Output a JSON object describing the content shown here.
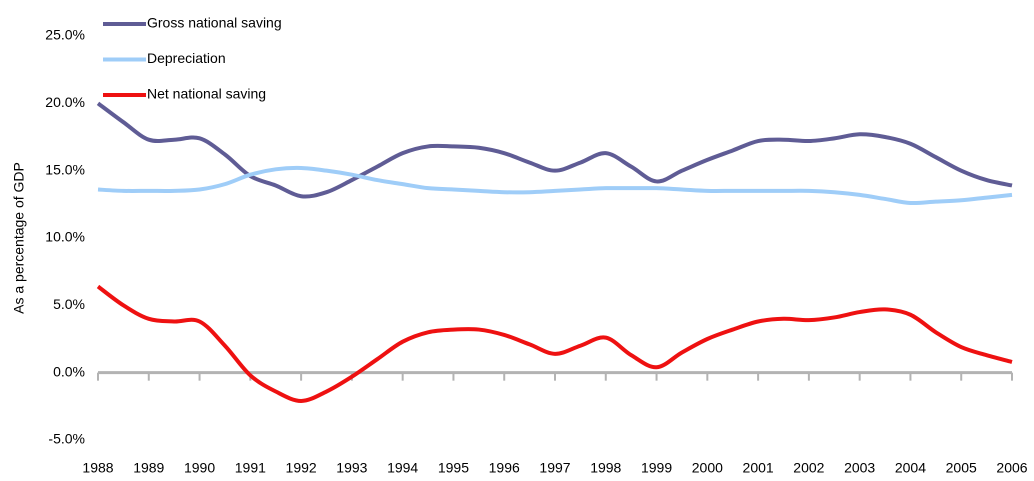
{
  "chart_data": {
    "type": "line",
    "y_label": "As a percentage of GDP",
    "x": [
      1988,
      1988.5,
      1989,
      1989.5,
      1990,
      1990.5,
      1991,
      1991.5,
      1992,
      1992.5,
      1993,
      1993.5,
      1994,
      1994.5,
      1995,
      1995.5,
      1996,
      1996.5,
      1997,
      1997.5,
      1998,
      1998.5,
      1999,
      1999.5,
      2000,
      2000.5,
      2001,
      2001.5,
      2002,
      2002.5,
      2003,
      2003.5,
      2004,
      2004.5,
      2005,
      2005.5,
      2006
    ],
    "series": [
      {
        "name": "Gross national saving",
        "color": "#5f5c95",
        "values": [
          20.0,
          18.6,
          17.3,
          17.3,
          17.4,
          16.2,
          14.6,
          13.9,
          13.1,
          13.4,
          14.3,
          15.3,
          16.3,
          16.8,
          16.8,
          16.7,
          16.3,
          15.6,
          15.0,
          15.6,
          16.3,
          15.3,
          14.2,
          15.0,
          15.8,
          16.5,
          17.2,
          17.3,
          17.2,
          17.4,
          17.7,
          17.5,
          17.0,
          16.0,
          15.0,
          14.3,
          13.9
        ]
      },
      {
        "name": "Depreciation",
        "color": "#9fcdf8",
        "values": [
          13.6,
          13.5,
          13.5,
          13.5,
          13.6,
          14.0,
          14.7,
          15.1,
          15.2,
          15.0,
          14.7,
          14.3,
          14.0,
          13.7,
          13.6,
          13.5,
          13.4,
          13.4,
          13.5,
          13.6,
          13.7,
          13.7,
          13.7,
          13.6,
          13.5,
          13.5,
          13.5,
          13.5,
          13.5,
          13.4,
          13.2,
          12.9,
          12.6,
          12.7,
          12.8,
          13.0,
          13.2
        ]
      },
      {
        "name": "Net national saving",
        "color": "#ee1111",
        "values": [
          6.4,
          5.0,
          4.0,
          3.8,
          3.8,
          2.0,
          -0.2,
          -1.4,
          -2.1,
          -1.4,
          -0.3,
          1.0,
          2.3,
          3.0,
          3.2,
          3.2,
          2.8,
          2.1,
          1.4,
          2.0,
          2.6,
          1.3,
          0.4,
          1.5,
          2.5,
          3.2,
          3.8,
          4.0,
          3.9,
          4.1,
          4.5,
          4.7,
          4.3,
          3.0,
          1.9,
          1.3,
          0.8
        ]
      }
    ],
    "xlim": [
      1988,
      2006
    ],
    "xticks": [
      1988,
      1989,
      1990,
      1991,
      1992,
      1993,
      1994,
      1995,
      1996,
      1997,
      1998,
      1999,
      2000,
      2001,
      2002,
      2003,
      2004,
      2005,
      2006
    ],
    "ylim": [
      -5,
      25
    ],
    "yticks": [
      {
        "value": -5,
        "label": "-5.0%"
      },
      {
        "value": 0,
        "label": "0.0%"
      },
      {
        "value": 5,
        "label": "5.0%"
      },
      {
        "value": 10,
        "label": "10.0%"
      },
      {
        "value": 15,
        "label": "15.0%"
      },
      {
        "value": 20,
        "label": "20.0%"
      },
      {
        "value": 25,
        "label": "25.0%"
      }
    ],
    "grid": false,
    "legend": "top-left"
  }
}
